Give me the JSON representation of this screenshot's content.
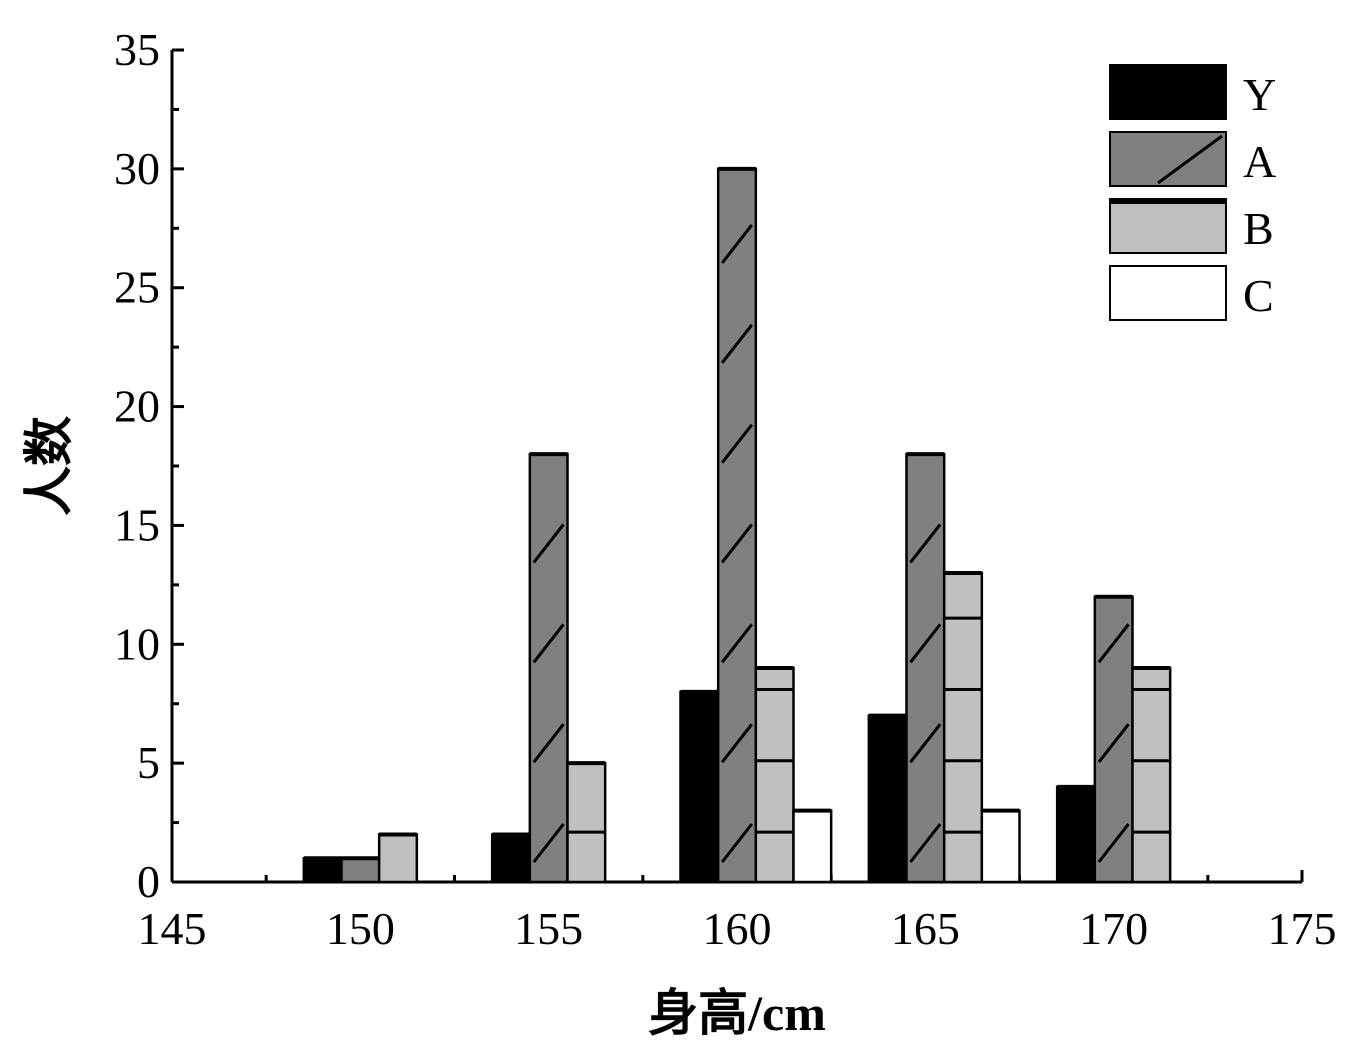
{
  "chart_data": {
    "type": "bar",
    "xlabel": "身高/cm",
    "ylabel": "人数",
    "xlim": [
      145,
      175
    ],
    "ylim": [
      0,
      35
    ],
    "x_ticks": [
      "145",
      "150",
      "155",
      "160",
      "165",
      "170",
      "175"
    ],
    "y_ticks": [
      "0",
      "5",
      "10",
      "15",
      "20",
      "25",
      "30",
      "35"
    ],
    "grid": false,
    "legend_position": "top-right",
    "categories": [
      150,
      155,
      160,
      165,
      170
    ],
    "series": [
      {
        "name": "Y",
        "color": "#000000",
        "pattern": "solid",
        "values": [
          1,
          2,
          8,
          7,
          4
        ]
      },
      {
        "name": "A",
        "color": "#808080",
        "pattern": "diagonal",
        "values": [
          1,
          18,
          30,
          18,
          12
        ]
      },
      {
        "name": "B",
        "color": "#c0c0c0",
        "pattern": "horizontal",
        "values": [
          2,
          5,
          9,
          13,
          9
        ]
      },
      {
        "name": "C",
        "color": "#ffffff",
        "pattern": "none",
        "values": [
          0,
          0,
          3,
          3,
          0
        ]
      }
    ]
  }
}
